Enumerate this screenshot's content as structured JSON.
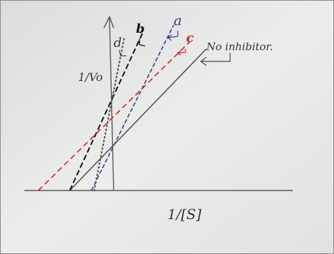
{
  "axes": {
    "y_label": "1/Vo",
    "x_label": "1/[S]"
  },
  "lines": [
    {
      "label": "No inhibitor."
    },
    {
      "label": "a"
    },
    {
      "label": "b"
    },
    {
      "label": "c"
    },
    {
      "label": "d"
    }
  ]
}
